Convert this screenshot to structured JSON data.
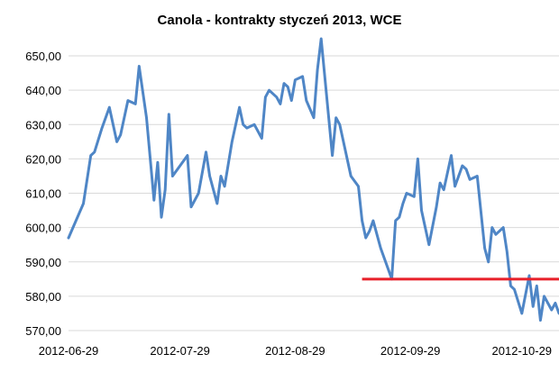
{
  "chart_data": {
    "type": "line",
    "title": "Canola - kontrakty styczeń 2013, WCE",
    "xlabel": "",
    "ylabel": "",
    "ylim": [
      570,
      655
    ],
    "y_ticks": [
      "570,00",
      "580,00",
      "590,00",
      "600,00",
      "610,00",
      "620,00",
      "630,00",
      "640,00",
      "650,00"
    ],
    "x_ticks": [
      "2012-06-29",
      "2012-07-29",
      "2012-08-29",
      "2012-09-29",
      "2012-10-29"
    ],
    "x_range": [
      "2012-06-29",
      "2012-11-08"
    ],
    "grid": "horizontal",
    "legend": "none",
    "colors": {
      "series": "#4f86c6",
      "reference_line": "#e8202a",
      "grid": "#d9d9d9"
    },
    "series": [
      {
        "x": [
          "2012-06-29",
          "2012-07-03",
          "2012-07-05",
          "2012-07-06",
          "2012-07-08",
          "2012-07-10",
          "2012-07-12",
          "2012-07-13",
          "2012-07-15",
          "2012-07-17",
          "2012-07-18",
          "2012-07-20",
          "2012-07-22",
          "2012-07-23",
          "2012-07-24",
          "2012-07-25",
          "2012-07-26",
          "2012-07-27",
          "2012-07-31",
          "2012-08-01",
          "2012-08-03",
          "2012-08-05",
          "2012-08-06",
          "2012-08-08",
          "2012-08-09",
          "2012-08-10",
          "2012-08-12",
          "2012-08-14",
          "2012-08-15",
          "2012-08-16",
          "2012-08-18",
          "2012-08-20",
          "2012-08-21",
          "2012-08-22",
          "2012-08-24",
          "2012-08-25",
          "2012-08-26",
          "2012-08-27",
          "2012-08-28",
          "2012-08-29",
          "2012-08-31",
          "2012-09-01",
          "2012-09-03",
          "2012-09-04",
          "2012-09-05",
          "2012-09-08",
          "2012-09-09",
          "2012-09-10",
          "2012-09-13",
          "2012-09-15",
          "2012-09-16",
          "2012-09-17",
          "2012-09-18",
          "2012-09-19",
          "2012-09-21",
          "2012-09-24",
          "2012-09-25",
          "2012-09-26",
          "2012-09-27",
          "2012-09-28",
          "2012-09-30",
          "2012-10-01",
          "2012-10-02",
          "2012-10-04",
          "2012-10-06",
          "2012-10-07",
          "2012-10-08",
          "2012-10-10",
          "2012-10-11",
          "2012-10-13",
          "2012-10-14",
          "2012-10-15",
          "2012-10-17",
          "2012-10-19",
          "2012-10-20",
          "2012-10-21",
          "2012-10-22",
          "2012-10-24",
          "2012-10-25",
          "2012-10-26",
          "2012-10-27",
          "2012-10-29",
          "2012-10-31",
          "2012-11-01",
          "2012-11-02",
          "2012-11-03",
          "2012-11-04",
          "2012-11-06",
          "2012-11-07",
          "2012-11-08"
        ],
        "y": [
          597,
          607,
          621,
          622,
          629,
          635,
          625,
          627,
          637,
          636,
          647,
          632,
          608,
          619,
          603,
          611,
          633,
          615,
          621,
          606,
          610,
          622,
          615,
          607,
          615,
          612,
          625,
          635,
          630,
          629,
          630,
          626,
          638,
          640,
          638,
          636,
          642,
          641,
          637,
          643,
          644,
          637,
          632,
          646,
          655,
          621,
          632,
          630,
          615,
          612,
          602,
          597,
          599,
          602,
          594,
          585,
          602,
          603,
          607,
          610,
          609,
          620,
          605,
          595,
          606,
          613,
          611,
          621,
          612,
          618,
          617,
          614,
          615,
          594,
          590,
          600,
          598,
          600,
          593,
          583,
          582,
          575,
          586,
          577,
          583,
          573,
          580,
          576,
          578,
          575
        ]
      }
    ],
    "reference_lines": [
      {
        "y": 585,
        "x_start": "2012-09-16",
        "x_end": "2012-11-08"
      }
    ]
  }
}
